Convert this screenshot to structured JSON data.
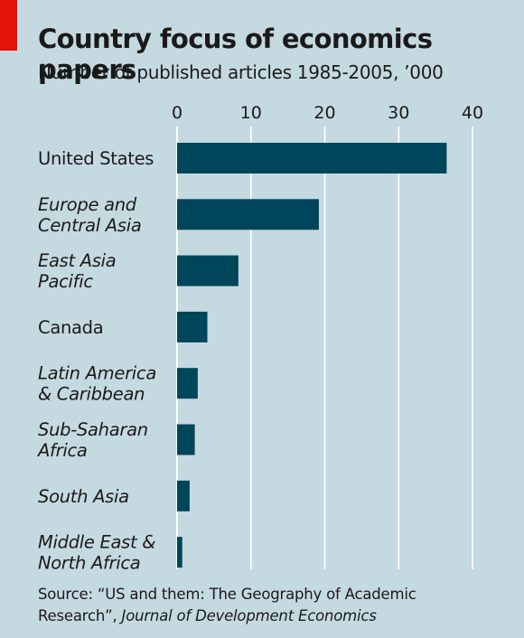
{
  "chart_data": {
    "type": "bar",
    "orientation": "horizontal",
    "title": "Country focus of economics papers",
    "subtitle": "Number of published articles 1985-2005, ’000",
    "categories": [
      "United States",
      "Europe and Central Asia",
      "East Asia Pacific",
      "Canada",
      "Latin America & Caribbean",
      "Sub-Saharan Africa",
      "South Asia",
      "Middle East & North Africa"
    ],
    "category_lines": [
      [
        "United States"
      ],
      [
        "Europe and",
        "Central Asia"
      ],
      [
        "East Asia",
        "Pacific"
      ],
      [
        "Canada"
      ],
      [
        "Latin America",
        "& Caribbean"
      ],
      [
        "Sub-Saharan",
        "Africa"
      ],
      [
        "South Asia"
      ],
      [
        "Middle East &",
        "North Africa"
      ]
    ],
    "category_italic": [
      false,
      true,
      true,
      false,
      true,
      true,
      true,
      true
    ],
    "values": [
      36.5,
      19.2,
      8.3,
      4.1,
      2.8,
      2.4,
      1.7,
      0.7
    ],
    "xlim": [
      0,
      40
    ],
    "xticks": [
      0,
      10,
      20,
      30,
      40
    ],
    "tick_position": "top",
    "grid": true,
    "bar_color": "#00465a",
    "grid_color": "#ffffff",
    "background_color": "#c5d9e1"
  },
  "source": {
    "prefix": "Source: “US and them: The Geography of Academic Research”, ",
    "journal": "Journal of Development Economics"
  },
  "colors": {
    "accent": "#e3120b"
  }
}
